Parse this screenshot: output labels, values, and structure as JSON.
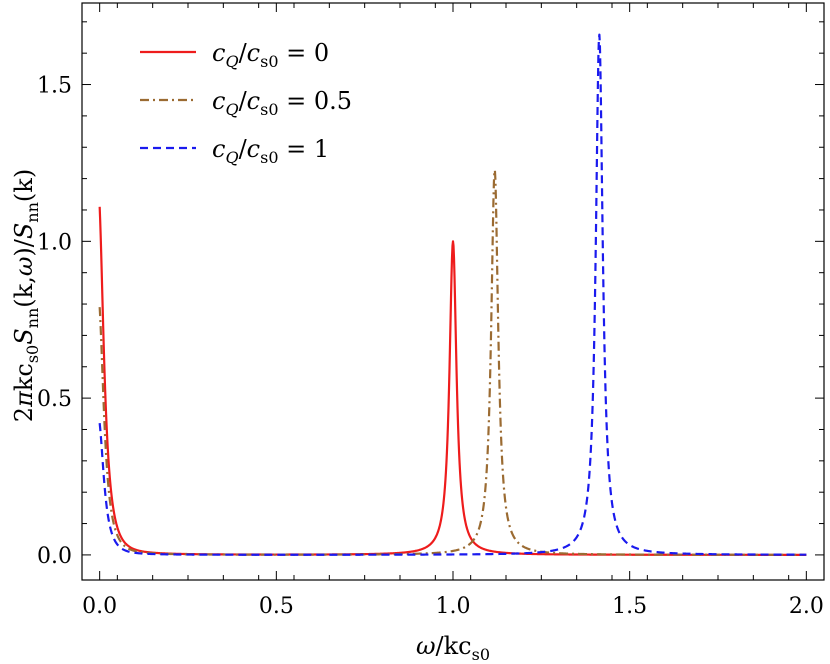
{
  "chart_data": {
    "type": "line",
    "title": "",
    "xlabel": "ω/kc_s0",
    "ylabel": "2πkc_s0 S_nn(k,ω)/S_nn(k)",
    "xlim": [
      -0.05,
      2.05
    ],
    "ylim": [
      -0.08,
      1.76
    ],
    "xticks": [
      "0.0",
      "0.5",
      "1.0",
      "1.5",
      "2.0"
    ],
    "yticks": [
      "0.0",
      "0.5",
      "1.0",
      "1.5"
    ],
    "grid": false,
    "legend_position": "top-left",
    "series": [
      {
        "name": "c_Q/c_s0 = 0",
        "color": "#ee1c1c",
        "style": "solid",
        "peak_x": 1.0,
        "peak_y": 1.0,
        "low_x_value_at_0": 1.11,
        "points": [
          [
            0,
            1.11
          ],
          [
            0.01,
            0.62
          ],
          [
            0.02,
            0.34
          ],
          [
            0.03,
            0.2
          ],
          [
            0.05,
            0.08
          ],
          [
            0.1,
            0.025
          ],
          [
            0.2,
            0.008
          ],
          [
            0.5,
            0.003
          ],
          [
            0.9,
            0.012
          ],
          [
            0.97,
            0.18
          ],
          [
            0.99,
            0.7
          ],
          [
            1.0,
            1.0
          ],
          [
            1.01,
            0.7
          ],
          [
            1.03,
            0.18
          ],
          [
            1.1,
            0.02
          ],
          [
            1.5,
            0.002
          ],
          [
            2.0,
            0.001
          ]
        ]
      },
      {
        "name": "c_Q/c_s0 = 0.5",
        "color": "#9b6b32",
        "style": "dashdot",
        "peak_x": 1.118,
        "peak_y": 1.23,
        "low_x_value_at_0": 0.79,
        "points": [
          [
            0,
            0.79
          ],
          [
            0.01,
            0.43
          ],
          [
            0.02,
            0.24
          ],
          [
            0.03,
            0.14
          ],
          [
            0.05,
            0.06
          ],
          [
            0.1,
            0.02
          ],
          [
            0.2,
            0.006
          ],
          [
            0.5,
            0.002
          ],
          [
            1.0,
            0.01
          ],
          [
            1.08,
            0.12
          ],
          [
            1.105,
            0.6
          ],
          [
            1.118,
            1.23
          ],
          [
            1.13,
            0.6
          ],
          [
            1.16,
            0.12
          ],
          [
            1.25,
            0.015
          ],
          [
            1.5,
            0.003
          ],
          [
            2.0,
            0.001
          ]
        ]
      },
      {
        "name": "c_Q/c_s0 = 1",
        "color": "#1a1aee",
        "style": "dashed",
        "peak_x": 1.414,
        "peak_y": 1.66,
        "low_x_value_at_0": 0.42,
        "points": [
          [
            0,
            0.42
          ],
          [
            0.01,
            0.23
          ],
          [
            0.02,
            0.13
          ],
          [
            0.03,
            0.08
          ],
          [
            0.05,
            0.035
          ],
          [
            0.1,
            0.012
          ],
          [
            0.2,
            0.004
          ],
          [
            0.5,
            0.001
          ],
          [
            1.2,
            0.006
          ],
          [
            1.35,
            0.08
          ],
          [
            1.4,
            0.5
          ],
          [
            1.414,
            1.66
          ],
          [
            1.43,
            0.5
          ],
          [
            1.48,
            0.08
          ],
          [
            1.6,
            0.01
          ],
          [
            2.0,
            0.002
          ]
        ]
      }
    ]
  }
}
